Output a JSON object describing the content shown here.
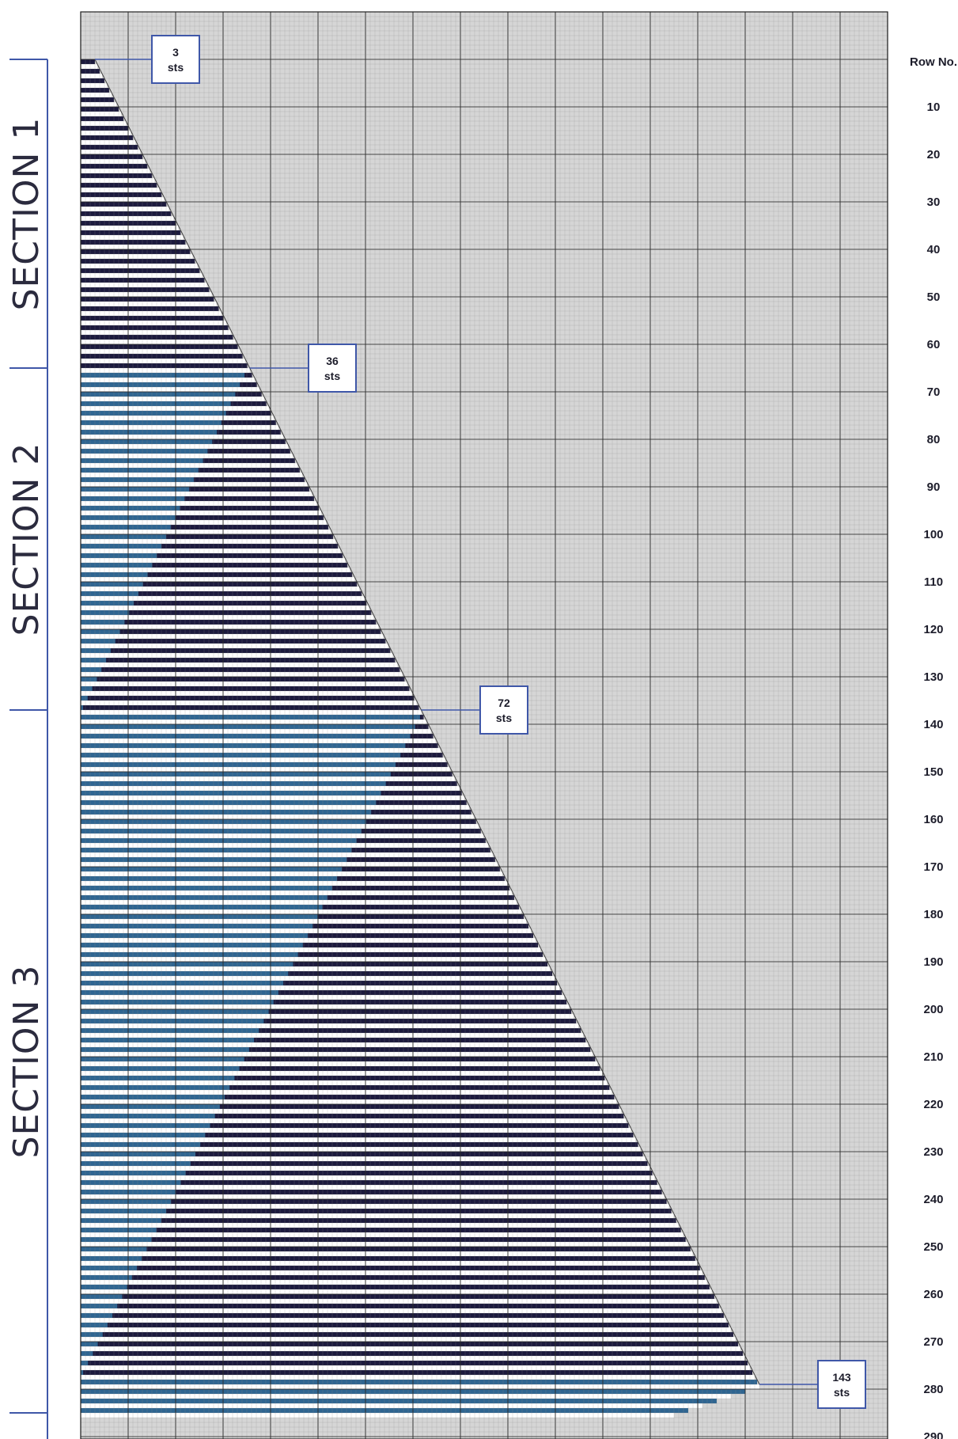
{
  "chart_data": {
    "type": "knitting-chart",
    "row_axis_title": "Row No.",
    "row_ticks": [
      10,
      20,
      30,
      40,
      50,
      60,
      70,
      80,
      90,
      100,
      110,
      120,
      130,
      140,
      150,
      160,
      170,
      180,
      190,
      200,
      210,
      220,
      230,
      240,
      250,
      260,
      270,
      280,
      290
    ],
    "total_columns": 170,
    "sections": [
      {
        "label": "SECTION 1",
        "start_row": 1,
        "end_row": 66
      },
      {
        "label": "SECTION 2",
        "start_row": 66,
        "end_row": 138
      },
      {
        "label": "SECTION 3",
        "start_row": 138,
        "end_row": 286
      }
    ],
    "stitch_callouts": [
      {
        "value": "3",
        "unit": "sts",
        "row": 1
      },
      {
        "value": "36",
        "unit": "sts",
        "row": 66
      },
      {
        "value": "72",
        "unit": "sts",
        "row": 138
      },
      {
        "value": "143",
        "unit": "sts",
        "row": 280
      }
    ],
    "colors": {
      "grid_background": "#d6d6d6",
      "grid_minor": "#8d8d8d",
      "grid_major": "#2c2c2c",
      "stripe_navy": "#1c1a3d",
      "stripe_blue": "#2f6591",
      "stripe_white": "#ffffff",
      "bracket": "#3f57a8",
      "callout_border": "#3f57a8"
    }
  }
}
